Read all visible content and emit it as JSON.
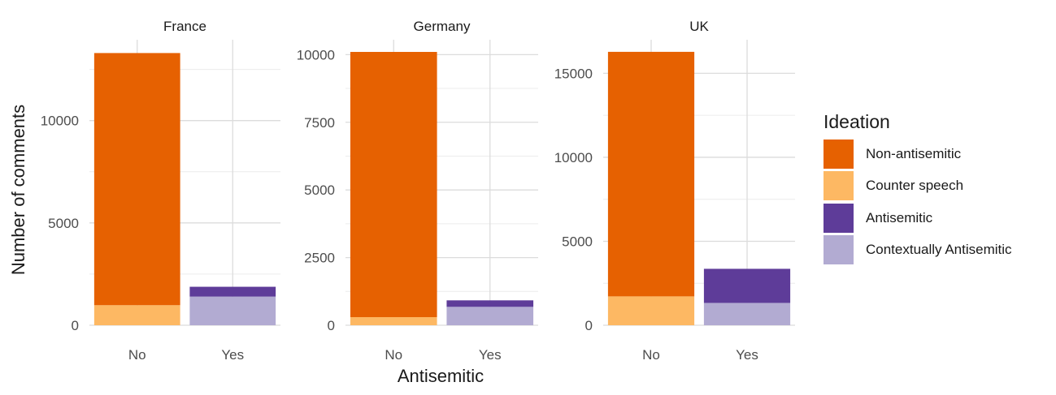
{
  "chart_data": {
    "type": "bar",
    "stacked": true,
    "facets": [
      "France",
      "Germany",
      "UK"
    ],
    "categories": [
      "No",
      "Yes"
    ],
    "xlabel": "Antisemitic",
    "ylabel": "Number of comments",
    "legend_title": "Ideation",
    "legend_position": "right",
    "grid": true,
    "series": [
      {
        "name": "Contextually Antisemitic",
        "color": "#b2abd2",
        "values": {
          "France": [
            0,
            1400
          ],
          "Germany": [
            0,
            680
          ],
          "UK": [
            0,
            1330
          ]
        }
      },
      {
        "name": "Antisemitic",
        "color": "#5e3c99",
        "values": {
          "France": [
            0,
            480
          ],
          "Germany": [
            0,
            240
          ],
          "UK": [
            0,
            2030
          ]
        }
      },
      {
        "name": "Counter speech",
        "color": "#fdb863",
        "values": {
          "France": [
            980,
            0
          ],
          "Germany": [
            300,
            0
          ],
          "UK": [
            1720,
            0
          ]
        }
      },
      {
        "name": "Non-antisemitic",
        "color": "#e66101",
        "values": {
          "France": [
            12320,
            0
          ],
          "Germany": [
            9800,
            0
          ],
          "UK": [
            14560,
            0
          ]
        }
      }
    ],
    "legend_order": [
      "Non-antisemitic",
      "Counter speech",
      "Antisemitic",
      "Contextually Antisemitic"
    ],
    "panels": [
      {
        "facet": "France",
        "ylim": [
          0,
          13950
        ],
        "yticks": [
          0,
          5000,
          10000
        ],
        "tick_labels": [
          "0",
          "5000",
          "10000"
        ]
      },
      {
        "facet": "Germany",
        "ylim": [
          0,
          10550
        ],
        "yticks": [
          0,
          2500,
          5000,
          7500,
          10000
        ],
        "tick_labels": [
          "0",
          "2500",
          "5000",
          "7500",
          "10000"
        ]
      },
      {
        "facet": "UK",
        "ylim": [
          0,
          17000
        ],
        "yticks": [
          0,
          5000,
          10000,
          15000
        ],
        "tick_labels": [
          "0",
          "5000",
          "10000",
          "15000"
        ]
      }
    ]
  }
}
